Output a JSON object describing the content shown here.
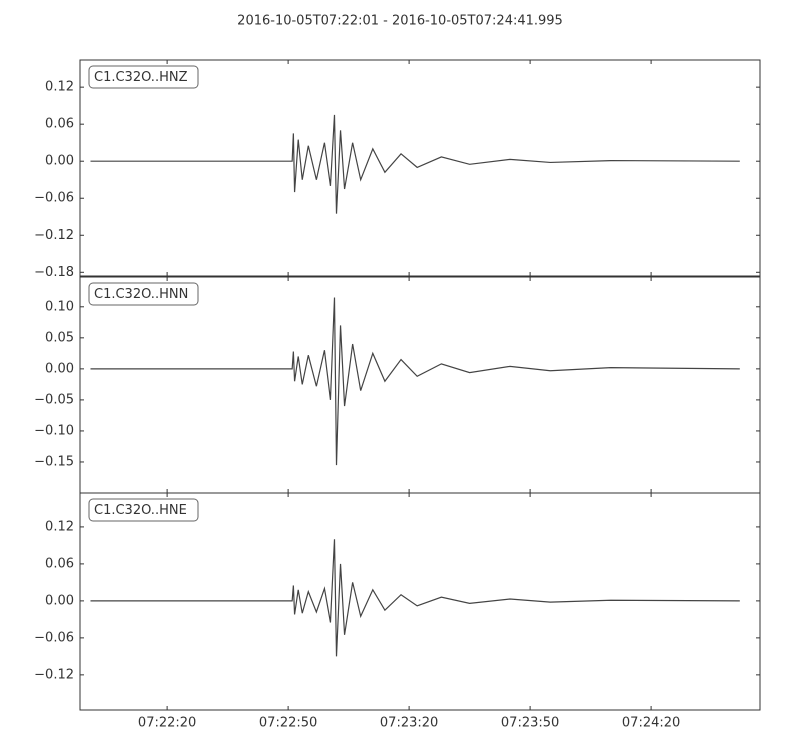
{
  "chart_data": [
    {
      "type": "line",
      "title": "2016-10-05T07:22:01  -  2016-10-05T07:24:41.995",
      "xlim": [
        "07:21:58.4",
        "07:24:47"
      ],
      "ylim": [
        -0.186,
        0.164
      ],
      "yticks": [
        {
          "value": 0.12,
          "label": "0.12"
        },
        {
          "value": 0.06,
          "label": "0.06"
        },
        {
          "value": 0,
          "label": "0.00"
        },
        {
          "value": -0.06,
          "label": "−0.06"
        },
        {
          "value": -0.12,
          "label": "−0.12"
        },
        {
          "value": -0.18,
          "label": "−0.18"
        }
      ],
      "series": [
        {
          "name": "C1.C32O..HNZ",
          "color": "#444444",
          "x": [
            "07:22:01",
            "07:22:51",
            "07:22:51.3",
            "07:22:51.6",
            "07:22:52.5",
            "07:22:53.5",
            "07:22:55",
            "07:22:57",
            "07:22:59",
            "07:23:00.5",
            "07:23:01.5",
            "07:23:02",
            "07:23:03",
            "07:23:04",
            "07:23:06",
            "07:23:08",
            "07:23:11",
            "07:23:14",
            "07:23:18",
            "07:23:22",
            "07:23:28",
            "07:23:35",
            "07:23:45",
            "07:23:55",
            "07:24:10",
            "07:24:41.995"
          ],
          "values": [
            0,
            0,
            0.045,
            -0.05,
            0.035,
            -0.03,
            0.025,
            -0.03,
            0.03,
            -0.04,
            0.075,
            -0.085,
            0.05,
            -0.045,
            0.03,
            -0.03,
            0.02,
            -0.018,
            0.012,
            -0.01,
            0.007,
            -0.005,
            0.003,
            -0.002,
            0.001,
            0
          ]
        }
      ]
    },
    {
      "type": "line",
      "xlim": [
        "07:21:58.4",
        "07:24:47"
      ],
      "ylim": [
        -0.2,
        0.148
      ],
      "yticks": [
        {
          "value": 0.1,
          "label": "0.10"
        },
        {
          "value": 0.05,
          "label": "0.05"
        },
        {
          "value": 0,
          "label": "0.00"
        },
        {
          "value": -0.05,
          "label": "−0.05"
        },
        {
          "value": -0.1,
          "label": "−0.10"
        },
        {
          "value": -0.15,
          "label": "−0.15"
        }
      ],
      "series": [
        {
          "name": "C1.C32O..HNN",
          "color": "#444444",
          "x": [
            "07:22:01",
            "07:22:51",
            "07:22:51.3",
            "07:22:51.6",
            "07:22:52.5",
            "07:22:53.5",
            "07:22:55",
            "07:22:57",
            "07:22:59",
            "07:23:00.5",
            "07:23:01.5",
            "07:23:02",
            "07:23:03",
            "07:23:04",
            "07:23:06",
            "07:23:08",
            "07:23:11",
            "07:23:14",
            "07:23:18",
            "07:23:22",
            "07:23:28",
            "07:23:35",
            "07:23:45",
            "07:23:55",
            "07:24:10",
            "07:24:41.995"
          ],
          "values": [
            0,
            0,
            0.028,
            -0.02,
            0.02,
            -0.025,
            0.022,
            -0.028,
            0.03,
            -0.05,
            0.115,
            -0.155,
            0.07,
            -0.06,
            0.04,
            -0.035,
            0.025,
            -0.02,
            0.015,
            -0.012,
            0.008,
            -0.006,
            0.004,
            -0.003,
            0.002,
            0
          ]
        }
      ]
    },
    {
      "type": "line",
      "xlim": [
        "07:21:58.4",
        "07:24:47"
      ],
      "ylim": [
        -0.177,
        0.175
      ],
      "xticks": [
        {
          "value": "07:22:20",
          "label": "07:22:20"
        },
        {
          "value": "07:22:50",
          "label": "07:22:50"
        },
        {
          "value": "07:23:20",
          "label": "07:23:20"
        },
        {
          "value": "07:23:50",
          "label": "07:23:50"
        },
        {
          "value": "07:24:20",
          "label": "07:24:20"
        }
      ],
      "yticks": [
        {
          "value": 0.12,
          "label": "0.12"
        },
        {
          "value": 0.06,
          "label": "0.06"
        },
        {
          "value": 0,
          "label": "0.00"
        },
        {
          "value": -0.06,
          "label": "−0.06"
        },
        {
          "value": -0.12,
          "label": "−0.12"
        }
      ],
      "series": [
        {
          "name": "C1.C32O..HNE",
          "color": "#444444",
          "x": [
            "07:22:01",
            "07:22:51",
            "07:22:51.3",
            "07:22:51.6",
            "07:22:52.5",
            "07:22:53.5",
            "07:22:55",
            "07:22:57",
            "07:22:59",
            "07:23:00.5",
            "07:23:01.5",
            "07:23:02",
            "07:23:03",
            "07:23:04",
            "07:23:06",
            "07:23:08",
            "07:23:11",
            "07:23:14",
            "07:23:18",
            "07:23:22",
            "07:23:28",
            "07:23:35",
            "07:23:45",
            "07:23:55",
            "07:24:10",
            "07:24:41.995"
          ],
          "values": [
            0,
            0,
            0.025,
            -0.022,
            0.018,
            -0.02,
            0.015,
            -0.018,
            0.02,
            -0.035,
            0.1,
            -0.09,
            0.06,
            -0.055,
            0.03,
            -0.025,
            0.018,
            -0.015,
            0.01,
            -0.008,
            0.006,
            -0.004,
            0.003,
            -0.002,
            0.001,
            0
          ]
        }
      ]
    }
  ]
}
